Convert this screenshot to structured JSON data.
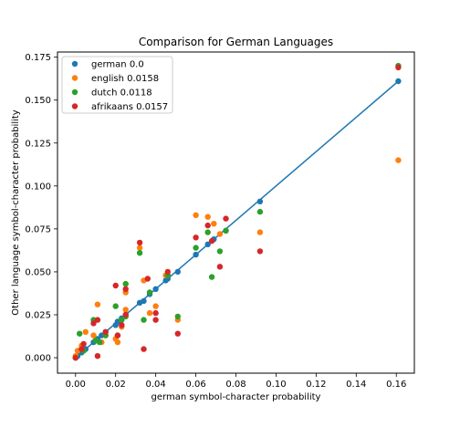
{
  "chart_data": {
    "type": "scatter",
    "title": "Comparison for German Languages",
    "xlabel": "german symbol-character probability",
    "ylabel": "Other language symbol-character probability",
    "xlim": [
      -0.009,
      0.169
    ],
    "ylim": [
      -0.009,
      0.178
    ],
    "x_ticks": [
      "0.00",
      "0.02",
      "0.04",
      "0.06",
      "0.08",
      "0.10",
      "0.12",
      "0.14",
      "0.16"
    ],
    "y_ticks": [
      "0.000",
      "0.025",
      "0.050",
      "0.075",
      "0.100",
      "0.125",
      "0.150",
      "0.175"
    ],
    "legend_position": "upper left",
    "grid": false,
    "reference_line": {
      "x": [
        0.0,
        0.161
      ],
      "y": [
        0.0,
        0.161
      ],
      "color": "#1f77b4"
    },
    "series": [
      {
        "name": "german 0.0",
        "color": "#1f77b4",
        "points": [
          [
            0.0,
            0.0
          ],
          [
            0.001,
            0.001
          ],
          [
            0.003,
            0.003
          ],
          [
            0.005,
            0.005
          ],
          [
            0.009,
            0.009
          ],
          [
            0.011,
            0.011
          ],
          [
            0.013,
            0.013
          ],
          [
            0.015,
            0.015
          ],
          [
            0.02,
            0.019
          ],
          [
            0.021,
            0.021
          ],
          [
            0.023,
            0.023
          ],
          [
            0.025,
            0.025
          ],
          [
            0.032,
            0.032
          ],
          [
            0.034,
            0.033
          ],
          [
            0.037,
            0.037
          ],
          [
            0.04,
            0.04
          ],
          [
            0.045,
            0.045
          ],
          [
            0.046,
            0.046
          ],
          [
            0.051,
            0.05
          ],
          [
            0.06,
            0.06
          ],
          [
            0.066,
            0.066
          ],
          [
            0.069,
            0.069
          ],
          [
            0.075,
            0.074
          ],
          [
            0.092,
            0.091
          ],
          [
            0.161,
            0.161
          ]
        ]
      },
      {
        "name": "english 0.0158",
        "color": "#ff7f0e",
        "points": [
          [
            0.0,
            0.001
          ],
          [
            0.001,
            0.004
          ],
          [
            0.003,
            0.007
          ],
          [
            0.005,
            0.015
          ],
          [
            0.009,
            0.013
          ],
          [
            0.011,
            0.031
          ],
          [
            0.013,
            0.009
          ],
          [
            0.015,
            0.013
          ],
          [
            0.02,
            0.011
          ],
          [
            0.021,
            0.009
          ],
          [
            0.023,
            0.018
          ],
          [
            0.025,
            0.028
          ],
          [
            0.025,
            0.038
          ],
          [
            0.032,
            0.064
          ],
          [
            0.034,
            0.045
          ],
          [
            0.037,
            0.026
          ],
          [
            0.04,
            0.03
          ],
          [
            0.045,
            0.048
          ],
          [
            0.046,
            0.048
          ],
          [
            0.051,
            0.022
          ],
          [
            0.06,
            0.083
          ],
          [
            0.066,
            0.082
          ],
          [
            0.069,
            0.078
          ],
          [
            0.072,
            0.072
          ],
          [
            0.092,
            0.073
          ],
          [
            0.161,
            0.115
          ]
        ]
      },
      {
        "name": "dutch 0.0118",
        "color": "#2ca02c",
        "points": [
          [
            0.0,
            0.0
          ],
          [
            0.002,
            0.014
          ],
          [
            0.004,
            0.004
          ],
          [
            0.009,
            0.022
          ],
          [
            0.01,
            0.01
          ],
          [
            0.012,
            0.009
          ],
          [
            0.015,
            0.013
          ],
          [
            0.02,
            0.03
          ],
          [
            0.021,
            0.013
          ],
          [
            0.023,
            0.022
          ],
          [
            0.025,
            0.043
          ],
          [
            0.025,
            0.024
          ],
          [
            0.032,
            0.061
          ],
          [
            0.034,
            0.022
          ],
          [
            0.037,
            0.038
          ],
          [
            0.046,
            0.048
          ],
          [
            0.051,
            0.024
          ],
          [
            0.06,
            0.064
          ],
          [
            0.066,
            0.073
          ],
          [
            0.068,
            0.047
          ],
          [
            0.072,
            0.062
          ],
          [
            0.075,
            0.074
          ],
          [
            0.092,
            0.085
          ],
          [
            0.161,
            0.17
          ]
        ]
      },
      {
        "name": "afrikaans 0.0157",
        "color": "#d62728",
        "points": [
          [
            0.0,
            0.0
          ],
          [
            0.003,
            0.005
          ],
          [
            0.004,
            0.008
          ],
          [
            0.009,
            0.02
          ],
          [
            0.011,
            0.001
          ],
          [
            0.011,
            0.022
          ],
          [
            0.015,
            0.015
          ],
          [
            0.02,
            0.042
          ],
          [
            0.021,
            0.013
          ],
          [
            0.023,
            0.019
          ],
          [
            0.025,
            0.04
          ],
          [
            0.025,
            0.025
          ],
          [
            0.032,
            0.067
          ],
          [
            0.034,
            0.005
          ],
          [
            0.036,
            0.046
          ],
          [
            0.04,
            0.026
          ],
          [
            0.04,
            0.022
          ],
          [
            0.046,
            0.05
          ],
          [
            0.051,
            0.014
          ],
          [
            0.06,
            0.07
          ],
          [
            0.066,
            0.077
          ],
          [
            0.068,
            0.068
          ],
          [
            0.072,
            0.053
          ],
          [
            0.075,
            0.081
          ],
          [
            0.092,
            0.062
          ],
          [
            0.161,
            0.169
          ]
        ]
      }
    ]
  }
}
